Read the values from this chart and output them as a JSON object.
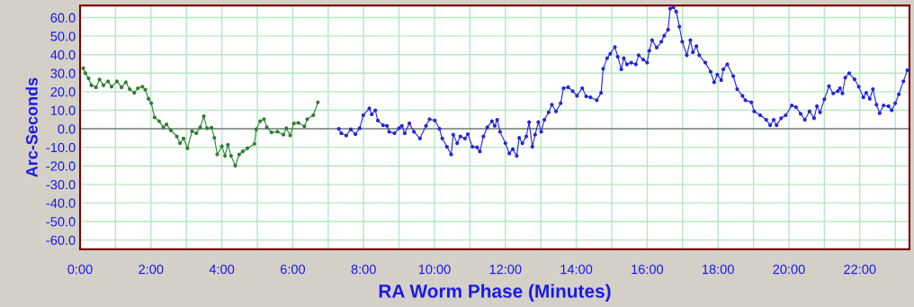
{
  "chart_data": {
    "type": "line",
    "xlabel": "RA Worm Phase (Minutes)",
    "ylabel": "Arc-Seconds",
    "xlim": [
      0,
      23.4
    ],
    "ylim": [
      -65,
      66.5
    ],
    "xticks": [
      {
        "value": 0,
        "label": "0:00"
      },
      {
        "value": 1,
        "label": null
      },
      {
        "value": 2,
        "label": "2:00"
      },
      {
        "value": 3,
        "label": null
      },
      {
        "value": 4,
        "label": "4:00"
      },
      {
        "value": 5,
        "label": null
      },
      {
        "value": 6,
        "label": "6:00"
      },
      {
        "value": 7,
        "label": null
      },
      {
        "value": 8,
        "label": "8:00"
      },
      {
        "value": 9,
        "label": null
      },
      {
        "value": 10,
        "label": "10:00"
      },
      {
        "value": 11,
        "label": null
      },
      {
        "value": 12,
        "label": "12:00"
      },
      {
        "value": 13,
        "label": null
      },
      {
        "value": 14,
        "label": "14:00"
      },
      {
        "value": 15,
        "label": null
      },
      {
        "value": 16,
        "label": "16:00"
      },
      {
        "value": 17,
        "label": null
      },
      {
        "value": 18,
        "label": "18:00"
      },
      {
        "value": 19,
        "label": null
      },
      {
        "value": 20,
        "label": "20:00"
      },
      {
        "value": 21,
        "label": null
      },
      {
        "value": 22,
        "label": "22:00"
      },
      {
        "value": 23,
        "label": null
      }
    ],
    "yticks": [
      {
        "value": 60,
        "label": "60.0"
      },
      {
        "value": 50,
        "label": "50.0"
      },
      {
        "value": 40,
        "label": "40.0"
      },
      {
        "value": 30,
        "label": "30.0"
      },
      {
        "value": 20,
        "label": "20.0"
      },
      {
        "value": 10,
        "label": "10.0"
      },
      {
        "value": 0,
        "label": "0.0"
      },
      {
        "value": -10,
        "label": "-10.0"
      },
      {
        "value": -20,
        "label": "-20.0"
      },
      {
        "value": -30,
        "label": "-30.0"
      },
      {
        "value": -40,
        "label": "-40.0"
      },
      {
        "value": -50,
        "label": "-50.0"
      },
      {
        "value": -60,
        "label": "-60.0"
      }
    ],
    "grid": true,
    "marker": "circle",
    "line_style": "solid",
    "ref_lines": [
      {
        "axis": "y",
        "value": 0,
        "label": null,
        "color": "#808080"
      }
    ],
    "series": [
      {
        "color": "#2e7d32",
        "x": [
          0.09,
          0.15,
          0.24,
          0.32,
          0.45,
          0.55,
          0.66,
          0.79,
          0.89,
          1.04,
          1.17,
          1.29,
          1.4,
          1.53,
          1.63,
          1.76,
          1.84,
          1.93,
          2.01,
          2.1,
          2.23,
          2.35,
          2.44,
          2.56,
          2.73,
          2.82,
          2.92,
          3.03,
          3.16,
          3.28,
          3.39,
          3.49,
          3.58,
          3.71,
          3.79,
          3.87,
          4.0,
          4.09,
          4.17,
          4.26,
          4.38,
          4.49,
          4.59,
          4.72,
          4.92,
          4.97,
          5.08,
          5.19,
          5.27,
          5.4,
          5.57,
          5.74,
          5.82,
          5.93,
          6.03,
          6.16,
          6.33,
          6.41,
          6.58,
          6.71
        ],
        "values": [
          32.7,
          30.0,
          27.2,
          23.5,
          22.4,
          26.6,
          23.5,
          25.6,
          22.7,
          25.6,
          22.4,
          25.1,
          21.4,
          19.4,
          21.9,
          22.7,
          21.1,
          16.2,
          13.8,
          6.2,
          4.1,
          0.8,
          2.4,
          -0.8,
          -4.1,
          -7.8,
          -5.2,
          -10.5,
          -1.3,
          -2.4,
          0.8,
          6.8,
          0.3,
          0.6,
          -4.9,
          -13.8,
          -9.4,
          -14.6,
          -8.6,
          -14.6,
          -19.9,
          -13.8,
          -12.2,
          -10.5,
          -8.1,
          -0.3,
          4.1,
          5.2,
          0.8,
          -1.9,
          -1.6,
          -3.2,
          0.3,
          -3.6,
          2.9,
          3.2,
          1.3,
          5.2,
          7.3,
          14.3
        ]
      },
      {
        "color": "#2424dd",
        "x": [
          7.3,
          7.37,
          7.51,
          7.64,
          7.77,
          7.89,
          7.99,
          8.16,
          8.23,
          8.33,
          8.4,
          8.55,
          8.66,
          8.72,
          8.87,
          9.0,
          9.08,
          9.16,
          9.29,
          9.42,
          9.59,
          9.76,
          9.86,
          10.01,
          10.14,
          10.22,
          10.35,
          10.47,
          10.53,
          10.64,
          10.73,
          10.86,
          10.94,
          11.07,
          11.2,
          11.28,
          11.38,
          11.49,
          11.62,
          11.7,
          11.77,
          11.85,
          12.0,
          12.11,
          12.21,
          12.32,
          12.39,
          12.48,
          12.59,
          12.67,
          12.76,
          12.84,
          12.93,
          13.01,
          13.1,
          13.22,
          13.31,
          13.43,
          13.56,
          13.64,
          13.77,
          13.9,
          14.02,
          14.17,
          14.28,
          14.4,
          14.58,
          14.7,
          14.76,
          14.87,
          14.96,
          15.09,
          15.17,
          15.27,
          15.34,
          15.43,
          15.55,
          15.68,
          15.76,
          15.89,
          16.0,
          16.06,
          16.14,
          16.27,
          16.4,
          16.48,
          16.59,
          16.65,
          16.74,
          16.82,
          16.91,
          16.99,
          17.12,
          17.22,
          17.29,
          17.39,
          17.47,
          17.64,
          17.79,
          17.89,
          17.98,
          18.09,
          18.15,
          18.26,
          18.43,
          18.54,
          18.69,
          18.77,
          18.94,
          19.02,
          19.19,
          19.36,
          19.47,
          19.57,
          19.65,
          19.78,
          19.91,
          20.08,
          20.2,
          20.33,
          20.45,
          20.58,
          20.71,
          20.79,
          20.88,
          21.0,
          21.13,
          21.25,
          21.38,
          21.44,
          21.51,
          21.59,
          21.7,
          21.85,
          21.97,
          22.1,
          22.18,
          22.28,
          22.37,
          22.47,
          22.56,
          22.67,
          22.81,
          22.9,
          23.0,
          23.1,
          23.23,
          23.34
        ],
        "values": [
          0,
          -2.4,
          -3.6,
          -0.3,
          -2.9,
          0.3,
          7.3,
          11.0,
          7.8,
          10.0,
          4.5,
          1.9,
          1.6,
          -1.6,
          -2.4,
          0.3,
          1.6,
          -2.4,
          2.9,
          -1.6,
          -5.2,
          1.6,
          5.2,
          4.5,
          0,
          -5.2,
          -9.7,
          -13.8,
          -3.2,
          -7.8,
          -4.1,
          -5.2,
          -2.9,
          -9.7,
          -10.0,
          -12.2,
          -4.1,
          0.8,
          4.1,
          1.6,
          4.9,
          -1.6,
          -7.8,
          -13.3,
          -11.0,
          -14.6,
          -4.9,
          -7.8,
          -4.1,
          3.6,
          -9.7,
          -3.2,
          3.6,
          -1.6,
          4.9,
          8.9,
          13.0,
          9.4,
          13.8,
          21.9,
          22.4,
          20.3,
          17.8,
          21.9,
          17.5,
          17.0,
          15.4,
          19.4,
          32.4,
          38.1,
          40.5,
          44.1,
          38.9,
          32.1,
          38.1,
          34.8,
          35.7,
          34.8,
          39.7,
          37.3,
          35.7,
          42.1,
          47.8,
          43.8,
          47.0,
          50.2,
          53.5,
          64.8,
          65.6,
          63.2,
          55.1,
          47.0,
          39.7,
          47.8,
          41.3,
          44.6,
          39.7,
          35.7,
          30.8,
          25.1,
          29.2,
          26.3,
          32.1,
          34.8,
          28.4,
          21.4,
          17.8,
          15.4,
          14.3,
          9.4,
          7.3,
          4.9,
          1.9,
          4.9,
          1.9,
          5.7,
          7.3,
          12.6,
          11.7,
          8.1,
          4.9,
          9.4,
          5.7,
          12.2,
          8.9,
          15.9,
          23.0,
          19.1,
          20.3,
          21.9,
          19.1,
          27.6,
          30.0,
          26.7,
          22.7,
          17.0,
          19.4,
          16.2,
          21.4,
          13.0,
          8.4,
          12.6,
          12.2,
          10.0,
          13.8,
          18.6,
          25.6,
          31.6
        ]
      }
    ]
  }
}
